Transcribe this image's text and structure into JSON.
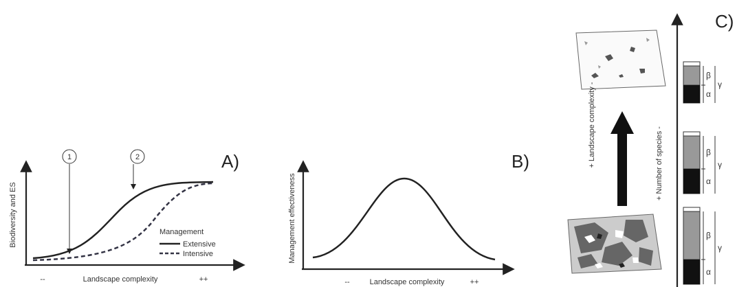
{
  "panel_a": {
    "label": "A)",
    "y_axis": "Biodiversity and ES",
    "x_axis": "Landscape complexity",
    "x_low": "--",
    "x_high": "++",
    "markers": [
      "1",
      "2"
    ],
    "legend": {
      "title": "Management",
      "items": [
        "Extensive",
        "Intensive"
      ]
    }
  },
  "panel_b": {
    "label": "B)",
    "y_axis": "Management effectiveness",
    "x_axis": "Landscape complexity",
    "x_low": "--",
    "x_high": "++"
  },
  "panel_c": {
    "label": "C)",
    "left_axis": "+ Landscape complexity -",
    "right_axis": "+ Number of species -",
    "bars": [
      {
        "beta": "β",
        "alpha": "α",
        "gamma": "γ"
      },
      {
        "beta": "β",
        "alpha": "α",
        "gamma": "γ"
      },
      {
        "beta": "β",
        "alpha": "α",
        "gamma": "γ"
      }
    ]
  }
}
